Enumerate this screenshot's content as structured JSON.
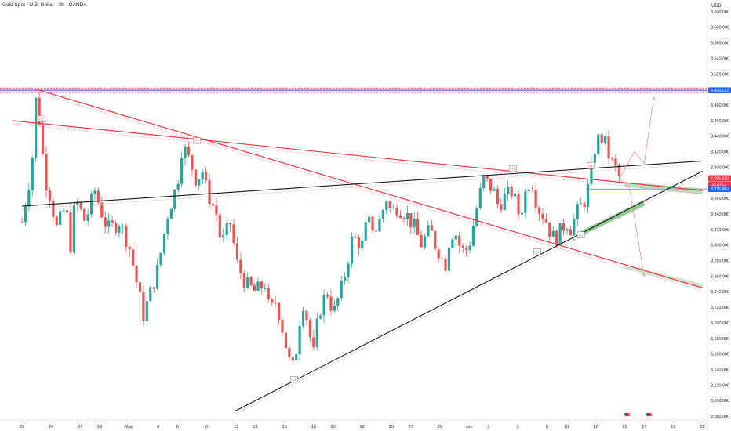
{
  "header": {
    "title": "Gold Spot / U.S. Dollar · 3h · OANDA",
    "currency": "USD"
  },
  "colors": {
    "up": "#26a69a",
    "down": "#ef5350",
    "resistance_line": "#f23645",
    "trend_line": "#131722",
    "forecast_band": "#81c784",
    "price_tag": "#f23645",
    "blue_tag": "#2962ff"
  },
  "chart_data": {
    "type": "candlestick",
    "instrument": "Gold Spot / U.S. Dollar",
    "timeframe": "3h",
    "source": "OANDA",
    "ylim": [
      3075,
      3615
    ],
    "y_ticks": [
      3600,
      3580,
      3560,
      3540,
      3520,
      3500,
      3480,
      3460,
      3440,
      3420,
      3400,
      3380,
      3360,
      3340,
      3320,
      3300,
      3280,
      3260,
      3240,
      3220,
      3200,
      3180,
      3160,
      3140,
      3120,
      3100,
      3080
    ],
    "y_tick_labels": [
      "3,600.000",
      "3,580.000",
      "3,560.000",
      "3,540.000",
      "3,520.000",
      "3,500.000",
      "3,480.000",
      "3,460.000",
      "3,440.000",
      "3,420.000",
      "3,400.000",
      "3,380.000",
      "3,360.000",
      "3,340.000",
      "3,320.000",
      "3,300.000",
      "3,280.000",
      "3,260.000",
      "3,240.000",
      "3,220.000",
      "3,200.000",
      "3,180.000",
      "3,160.000",
      "3,140.000",
      "3,120.000",
      "3,100.000",
      "3,080.000"
    ],
    "x_ticks": [
      {
        "label": "22",
        "x": 0
      },
      {
        "label": "24",
        "x": 6
      },
      {
        "label": "27",
        "x": 12
      },
      {
        "label": "29",
        "x": 16
      },
      {
        "label": "May",
        "x": 22
      },
      {
        "label": "4",
        "x": 28
      },
      {
        "label": "6",
        "x": 32
      },
      {
        "label": "8",
        "x": 38
      },
      {
        "label": "11",
        "x": 44
      },
      {
        "label": "13",
        "x": 48
      },
      {
        "label": "15",
        "x": 54
      },
      {
        "label": "18",
        "x": 60
      },
      {
        "label": "20",
        "x": 64
      },
      {
        "label": "22",
        "x": 70
      },
      {
        "label": "25",
        "x": 76
      },
      {
        "label": "27",
        "x": 80
      },
      {
        "label": "29",
        "x": 86
      },
      {
        "label": "Jun",
        "x": 92
      },
      {
        "label": "3",
        "x": 96
      },
      {
        "label": "5",
        "x": 102
      },
      {
        "label": "8",
        "x": 108
      },
      {
        "label": "10",
        "x": 112
      },
      {
        "label": "12",
        "x": 118
      },
      {
        "label": "15",
        "x": 124
      },
      {
        "label": "17",
        "x": 128
      },
      {
        "label": "19",
        "x": 134
      },
      {
        "label": "22",
        "x": 140
      }
    ],
    "close_path": [
      [
        0,
        3330
      ],
      [
        2,
        3400
      ],
      [
        3,
        3500
      ],
      [
        4,
        3430
      ],
      [
        5,
        3380
      ],
      [
        6,
        3360
      ],
      [
        7,
        3320
      ],
      [
        9,
        3350
      ],
      [
        10,
        3300
      ],
      [
        11,
        3360
      ],
      [
        13,
        3330
      ],
      [
        15,
        3370
      ],
      [
        17,
        3330
      ],
      [
        18,
        3320
      ],
      [
        20,
        3330
      ],
      [
        22,
        3300
      ],
      [
        24,
        3240
      ],
      [
        25,
        3210
      ],
      [
        26,
        3230
      ],
      [
        28,
        3270
      ],
      [
        30,
        3340
      ],
      [
        32,
        3380
      ],
      [
        33,
        3430
      ],
      [
        35,
        3400
      ],
      [
        36,
        3380
      ],
      [
        37,
        3400
      ],
      [
        38,
        3370
      ],
      [
        40,
        3340
      ],
      [
        41,
        3300
      ],
      [
        43,
        3330
      ],
      [
        44,
        3280
      ],
      [
        46,
        3250
      ],
      [
        48,
        3240
      ],
      [
        50,
        3250
      ],
      [
        51,
        3210
      ],
      [
        52,
        3230
      ],
      [
        53,
        3210
      ],
      [
        54,
        3180
      ],
      [
        55,
        3150
      ],
      [
        56,
        3140
      ],
      [
        57,
        3200
      ],
      [
        58,
        3230
      ],
      [
        59,
        3190
      ],
      [
        60,
        3160
      ],
      [
        61,
        3210
      ],
      [
        62,
        3230
      ],
      [
        63,
        3240
      ],
      [
        64,
        3210
      ],
      [
        66,
        3250
      ],
      [
        68,
        3310
      ],
      [
        70,
        3300
      ],
      [
        71,
        3330
      ],
      [
        73,
        3320
      ],
      [
        75,
        3360
      ],
      [
        76,
        3340
      ],
      [
        77,
        3350
      ],
      [
        79,
        3340
      ],
      [
        81,
        3320
      ],
      [
        82,
        3300
      ],
      [
        84,
        3320
      ],
      [
        85,
        3300
      ],
      [
        86,
        3290
      ],
      [
        87,
        3270
      ],
      [
        88,
        3310
      ],
      [
        89,
        3320
      ],
      [
        90,
        3300
      ],
      [
        91,
        3290
      ],
      [
        92,
        3300
      ],
      [
        94,
        3360
      ],
      [
        95,
        3385
      ],
      [
        97,
        3370
      ],
      [
        98,
        3350
      ],
      [
        99,
        3360
      ],
      [
        101,
        3370
      ],
      [
        102,
        3340
      ],
      [
        103,
        3350
      ],
      [
        104,
        3380
      ],
      [
        105,
        3380
      ],
      [
        106,
        3350
      ],
      [
        107,
        3340
      ],
      [
        108,
        3330
      ],
      [
        109,
        3310
      ],
      [
        110,
        3310
      ],
      [
        111,
        3320
      ],
      [
        112,
        3330
      ],
      [
        113,
        3320
      ],
      [
        114,
        3340
      ],
      [
        115,
        3350
      ],
      [
        116,
        3360
      ],
      [
        117,
        3390
      ],
      [
        118,
        3430
      ],
      [
        119,
        3440
      ],
      [
        120,
        3430
      ],
      [
        121,
        3410
      ],
      [
        122,
        3400
      ],
      [
        123,
        3386
      ]
    ],
    "lines": [
      {
        "name": "resistance-1",
        "type": "red",
        "from": [
          -2,
          3460
        ],
        "to": [
          140,
          3370
        ]
      },
      {
        "name": "resistance-2",
        "type": "red",
        "from": [
          3,
          3500
        ],
        "to": [
          140,
          3245
        ]
      },
      {
        "name": "resistance-level",
        "type": "red-band",
        "y_top": 3502,
        "y_bottom": 3496
      },
      {
        "name": "neckline",
        "type": "black",
        "from": [
          0,
          3350
        ],
        "to": [
          140,
          3408
        ]
      },
      {
        "name": "rising-support",
        "type": "black",
        "from": [
          44,
          3087
        ],
        "to": [
          140,
          3395
        ]
      }
    ],
    "pivot_labels": [
      {
        "label": "R1",
        "x": 4,
        "y": 3462
      },
      {
        "label": "R1",
        "x": 36,
        "y": 3434
      },
      {
        "label": "R1",
        "x": 101,
        "y": 3398
      },
      {
        "label": "R1",
        "x": 117,
        "y": 3402
      },
      {
        "label": "S1",
        "x": 56,
        "y": 3127
      },
      {
        "label": "S1",
        "x": 106,
        "y": 3291
      },
      {
        "label": "S1",
        "x": 115,
        "y": 3313
      }
    ],
    "projections": [
      {
        "name": "bullish-path",
        "points": [
          [
            123,
            3386
          ],
          [
            126,
            3420
          ],
          [
            128,
            3405
          ],
          [
            130,
            3490
          ]
        ]
      },
      {
        "name": "bearish-path",
        "points": [
          [
            123,
            3386
          ],
          [
            125,
            3373
          ],
          [
            128,
            3260
          ]
        ]
      }
    ],
    "price_tags": [
      {
        "label": "3,499.122",
        "y": 3499,
        "color": "#2962ff"
      },
      {
        "label": "3,385.610",
        "y": 3386,
        "color": "#f23645"
      },
      {
        "label": "02:20:12",
        "y": 3378,
        "color": "#f23645"
      },
      {
        "label": "3,375.960",
        "y": 3372,
        "color": "#2962ff"
      }
    ]
  }
}
